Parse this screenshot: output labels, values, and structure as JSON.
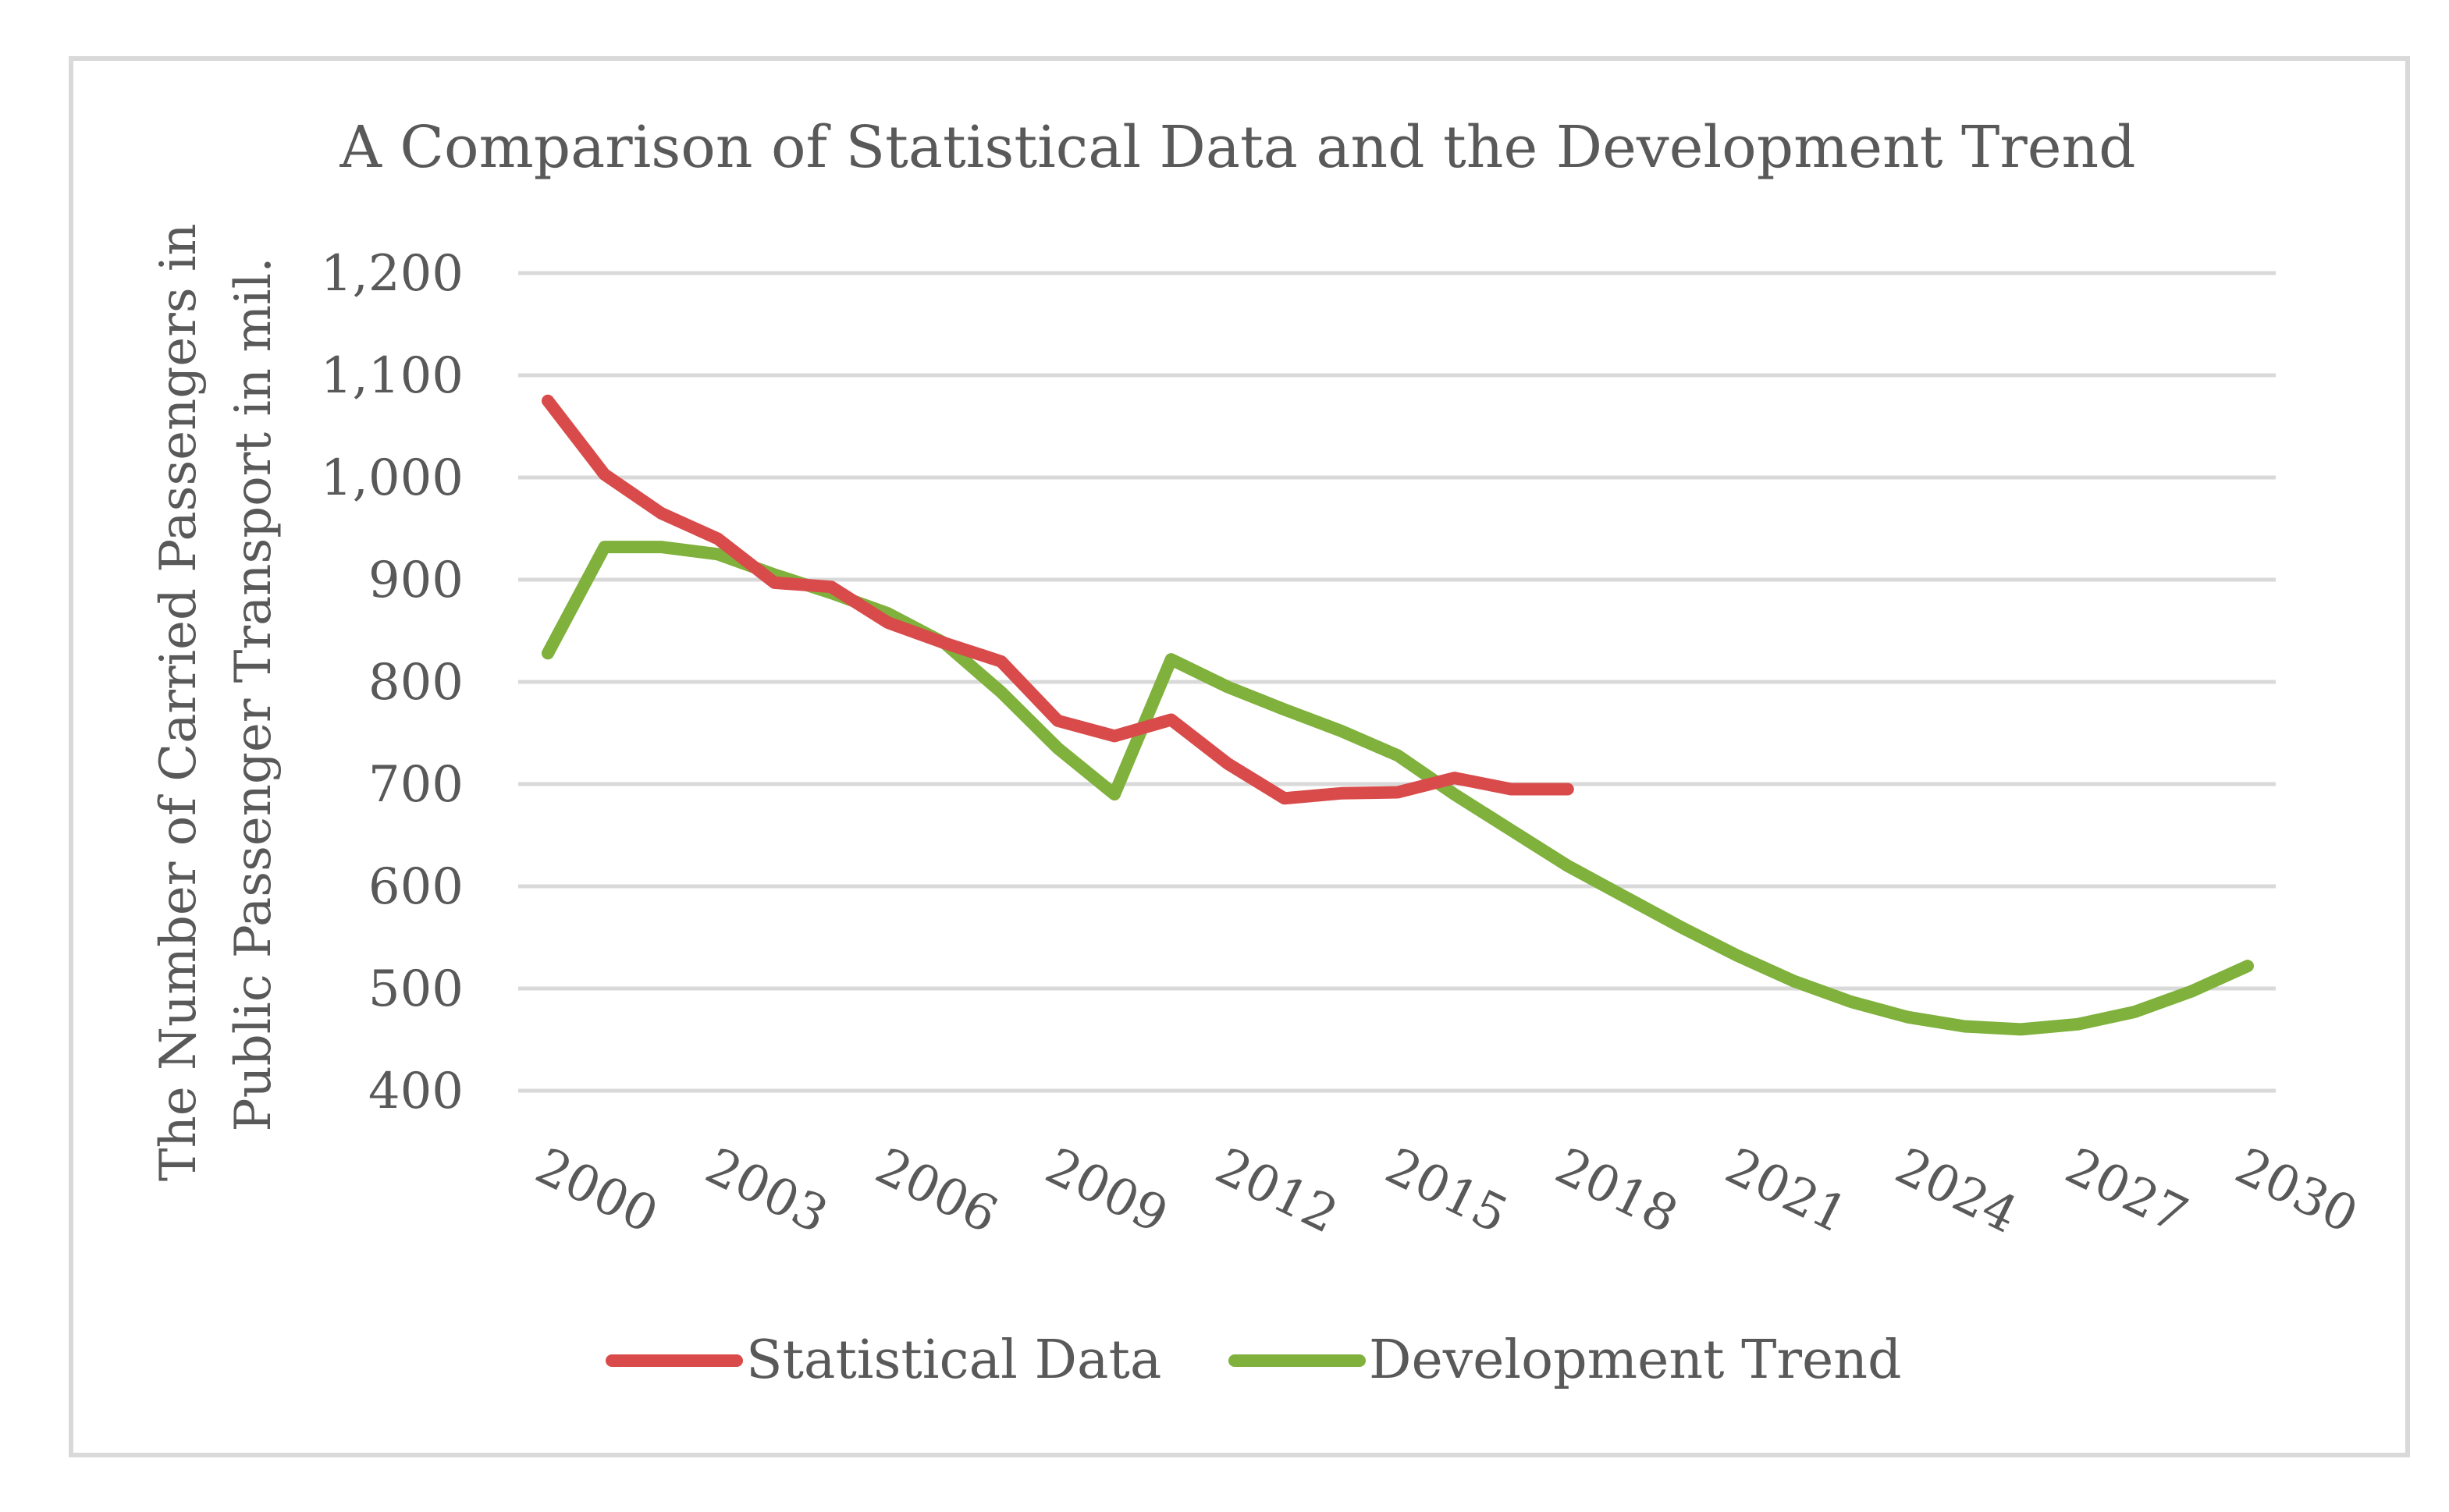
{
  "chart_data": {
    "type": "line",
    "title": "A Comparison of Statistical Data and the Development Trend",
    "ylabel_lines": [
      "The Number of Carried  Passengers in",
      "Public Passenger Transport in mil."
    ],
    "xlabel": "",
    "ylim": [
      400,
      1200
    ],
    "xlim": [
      2000,
      2030
    ],
    "y_ticks": [
      400,
      500,
      600,
      700,
      800,
      900,
      1000,
      1100,
      1200
    ],
    "y_tick_labels": [
      "400",
      "500",
      "600",
      "700",
      "800",
      "900",
      "1,000",
      "1,100",
      "1,200"
    ],
    "x_ticks": [
      2000,
      2003,
      2006,
      2009,
      2012,
      2015,
      2018,
      2021,
      2024,
      2027,
      2030
    ],
    "x_tick_labels": [
      "2000",
      "2003",
      "2006",
      "2009",
      "2012",
      "2015",
      "2018",
      "2021",
      "2024",
      "2027",
      "2030"
    ],
    "grid": true,
    "legend_position": "bottom",
    "series": [
      {
        "name": "Statistical Data",
        "color": "#d94b4b",
        "x": [
          2000,
          2001,
          2002,
          2003,
          2004,
          2005,
          2006,
          2007,
          2008,
          2009,
          2010,
          2011,
          2012,
          2013,
          2014,
          2015,
          2016,
          2017,
          2018
        ],
        "values": [
          1075,
          1003,
          965,
          940,
          897,
          893,
          858,
          838,
          820,
          762,
          747,
          763,
          720,
          686,
          691,
          692,
          706,
          695,
          695
        ]
      },
      {
        "name": "Development Trend",
        "color": "#7fb13c",
        "x": [
          2000,
          2001,
          2002,
          2003,
          2004,
          2005,
          2006,
          2007,
          2008,
          2009,
          2010,
          2011,
          2012,
          2013,
          2014,
          2015,
          2016,
          2017,
          2018,
          2019,
          2020,
          2021,
          2022,
          2023,
          2024,
          2025,
          2026,
          2027,
          2028,
          2029,
          2030
        ],
        "values": [
          828,
          932,
          932,
          925,
          905,
          887,
          867,
          838,
          790,
          735,
          690,
          822,
          795,
          773,
          752,
          728,
          690,
          655,
          620,
          590,
          560,
          532,
          507,
          487,
          472,
          463,
          460,
          465,
          477,
          497,
          522
        ]
      }
    ]
  }
}
